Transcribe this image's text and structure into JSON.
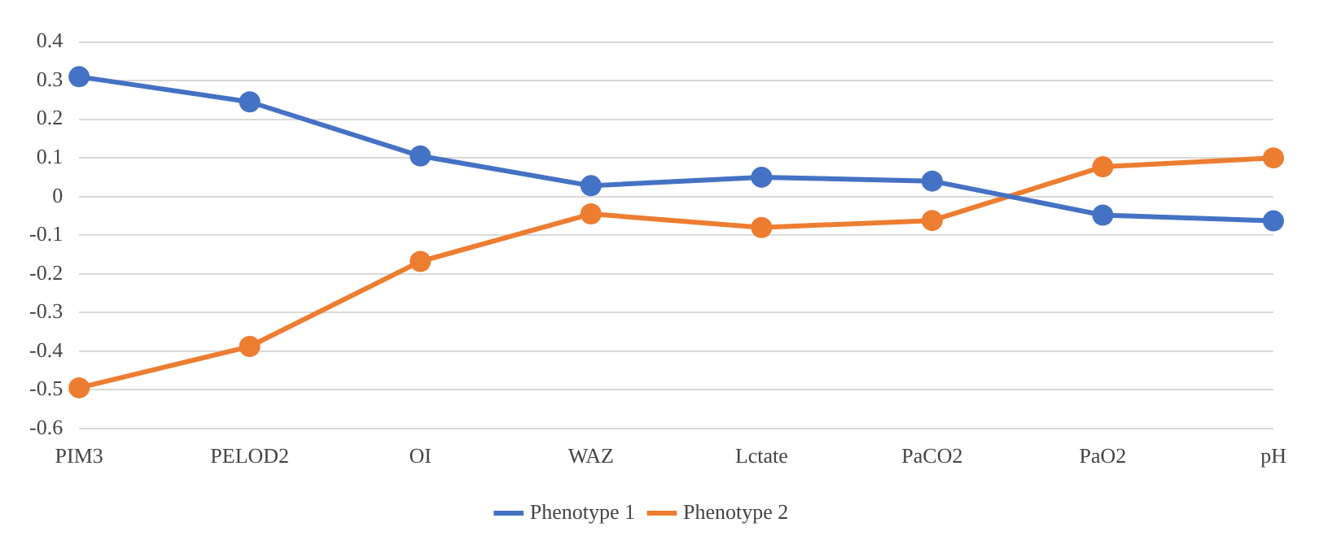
{
  "chart_data": {
    "type": "line",
    "categories": [
      "PIM3",
      "PELOD2",
      "OI",
      "WAZ",
      "Lctate",
      "PaCO2",
      "PaO2",
      "pH"
    ],
    "series": [
      {
        "name": "Phenotype 1",
        "color": "#4472c4",
        "values": [
          0.31,
          0.245,
          0.105,
          0.028,
          0.05,
          0.04,
          -0.048,
          -0.063
        ]
      },
      {
        "name": "Phenotype 2",
        "color": "#ed7d31",
        "values": [
          -0.495,
          -0.388,
          -0.168,
          -0.045,
          -0.08,
          -0.062,
          0.077,
          0.1
        ]
      }
    ],
    "ylim": [
      -0.6,
      0.4
    ],
    "yticks": [
      0.4,
      0.3,
      0.2,
      0.1,
      0,
      -0.1,
      -0.2,
      -0.3,
      -0.4,
      -0.5,
      -0.6
    ],
    "grid": "y",
    "legend": "bottom",
    "marker": "circle",
    "line_style": "solid"
  }
}
